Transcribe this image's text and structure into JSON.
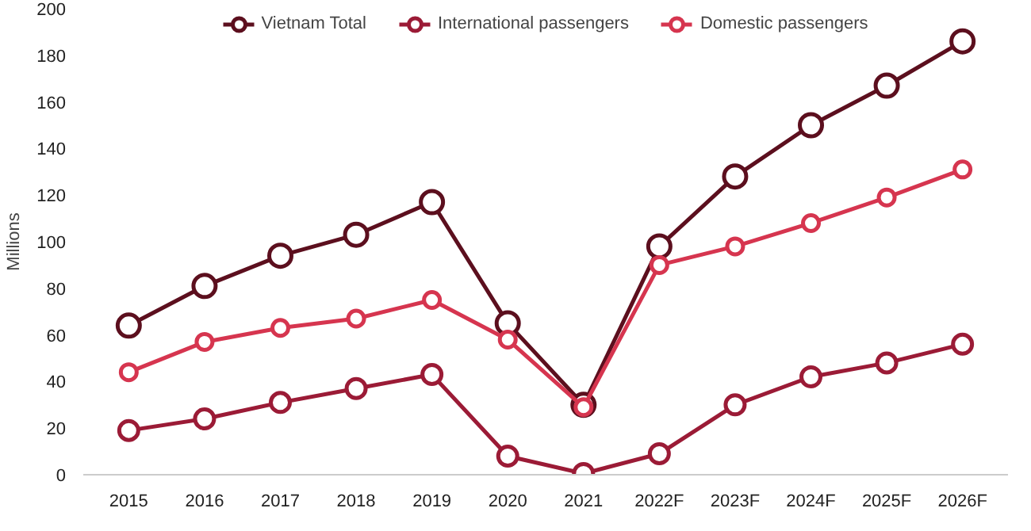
{
  "chart_data": {
    "type": "line",
    "ylabel": "Millions",
    "categories": [
      "2015",
      "2016",
      "2017",
      "2018",
      "2019",
      "2020",
      "2021",
      "2022F",
      "2023F",
      "2024F",
      "2025F",
      "2026F"
    ],
    "series": [
      {
        "name": "Vietnam Total",
        "color": "#5c0f1e",
        "values": [
          64,
          81,
          94,
          103,
          117,
          65,
          30,
          98,
          128,
          150,
          167,
          186
        ]
      },
      {
        "name": "International passengers",
        "color": "#9b1b36",
        "values": [
          19,
          24,
          31,
          37,
          43,
          8,
          0.5,
          9,
          30,
          42,
          48,
          56
        ]
      },
      {
        "name": "Domestic passengers",
        "color": "#d6354f",
        "values": [
          44,
          57,
          63,
          67,
          75,
          58,
          29,
          90,
          98,
          108,
          119,
          131
        ]
      }
    ],
    "ylim": [
      0,
      200
    ],
    "yticks": [
      0,
      20,
      40,
      60,
      80,
      100,
      120,
      140,
      160,
      180,
      200
    ],
    "grid": false,
    "legend": "top",
    "marker": "circle",
    "line_style": "solid"
  }
}
